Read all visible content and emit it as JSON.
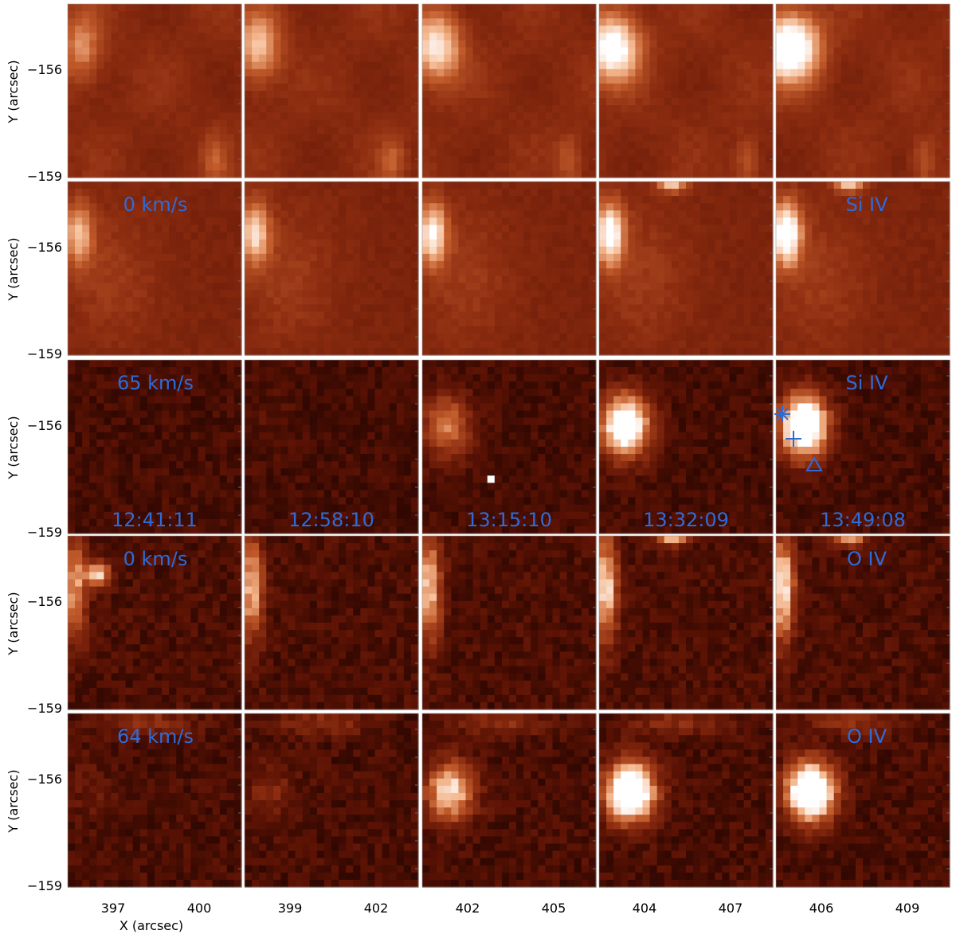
{
  "figure": {
    "x_axis_label": "X (arcsec)",
    "y_axis_label": "Y (arcsec)",
    "y_tick_labels": [
      "−156",
      "−159"
    ],
    "column_times": [
      "12:41:11",
      "12:58:10",
      "13:15:10",
      "13:32:09",
      "13:49:08"
    ],
    "column_x_ticks": [
      [
        "397",
        "400"
      ],
      [
        "399",
        "402"
      ],
      [
        "402",
        "405"
      ],
      [
        "404",
        "407"
      ],
      [
        "406",
        "409"
      ]
    ],
    "rows": [
      {
        "velocity_label": "",
        "line_label": ""
      },
      {
        "velocity_label": "0 km/s",
        "line_label": "Si IV"
      },
      {
        "velocity_label": "65 km/s",
        "line_label": "Si IV"
      },
      {
        "velocity_label": "0 km/s",
        "line_label": "O IV"
      },
      {
        "velocity_label": "64 km/s",
        "line_label": "O IV"
      }
    ],
    "markers": [
      "asterisk",
      "plus",
      "triangle"
    ],
    "colormap": [
      "#1a0200",
      "#5a1204",
      "#8b2c10",
      "#c05a2a",
      "#f3b48a",
      "#ffffff"
    ]
  }
}
